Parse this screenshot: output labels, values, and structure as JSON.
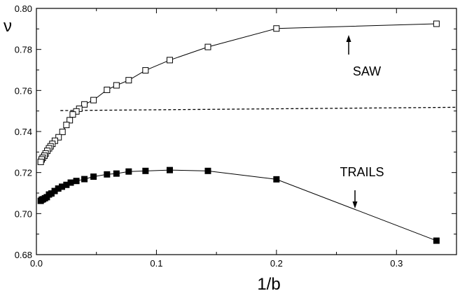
{
  "chart_data": {
    "type": "line",
    "title": "",
    "xlabel": "1/b",
    "ylabel": "ν",
    "xlim": [
      0.0,
      0.35
    ],
    "ylim": [
      0.68,
      0.8
    ],
    "x_ticks": [
      "0.0",
      "0.1",
      "0.2",
      "0.3"
    ],
    "y_ticks": [
      "0.68",
      "0.70",
      "0.72",
      "0.74",
      "0.76",
      "0.78",
      "0.80"
    ],
    "grid": false,
    "series": [
      {
        "name": "SAW",
        "marker": "open-square",
        "x": [
          0.3333,
          0.2,
          0.1429,
          0.1111,
          0.0909,
          0.0769,
          0.0667,
          0.0588,
          0.0476,
          0.04,
          0.0357,
          0.0333,
          0.0303,
          0.0278,
          0.025,
          0.0217,
          0.0185,
          0.0154,
          0.0133,
          0.0118,
          0.0105,
          0.0091,
          0.0077,
          0.0067,
          0.0053,
          0.0044,
          0.0036
        ],
        "y": [
          0.7925,
          0.7902,
          0.7812,
          0.7748,
          0.7698,
          0.765,
          0.7625,
          0.7603,
          0.7553,
          0.7532,
          0.7511,
          0.7498,
          0.7483,
          0.7455,
          0.7432,
          0.7398,
          0.7372,
          0.7355,
          0.734,
          0.7328,
          0.7318,
          0.7306,
          0.7293,
          0.7282,
          0.7272,
          0.7264,
          0.7252
        ]
      },
      {
        "name": "TRAILS",
        "marker": "filled-square",
        "x": [
          0.3333,
          0.2,
          0.1429,
          0.1111,
          0.0909,
          0.0769,
          0.0667,
          0.0588,
          0.0476,
          0.04,
          0.0333,
          0.0286,
          0.025,
          0.0213,
          0.0182,
          0.0152,
          0.0125,
          0.0105,
          0.0087,
          0.0071,
          0.0056,
          0.0045,
          0.0036
        ],
        "y": [
          0.6868,
          0.7167,
          0.7208,
          0.7212,
          0.7208,
          0.7205,
          0.7195,
          0.7191,
          0.718,
          0.7168,
          0.7159,
          0.7151,
          0.714,
          0.7131,
          0.7122,
          0.711,
          0.7098,
          0.7093,
          0.708,
          0.7075,
          0.707,
          0.7068,
          0.7062
        ]
      }
    ],
    "reference_line": {
      "style": "dashed",
      "x": [
        0.02,
        0.35
      ],
      "y": [
        0.7502,
        0.7518
      ]
    },
    "annotations": [
      {
        "text": "SAW",
        "arrow": "up"
      },
      {
        "text": "TRAILS",
        "arrow": "down"
      }
    ]
  }
}
